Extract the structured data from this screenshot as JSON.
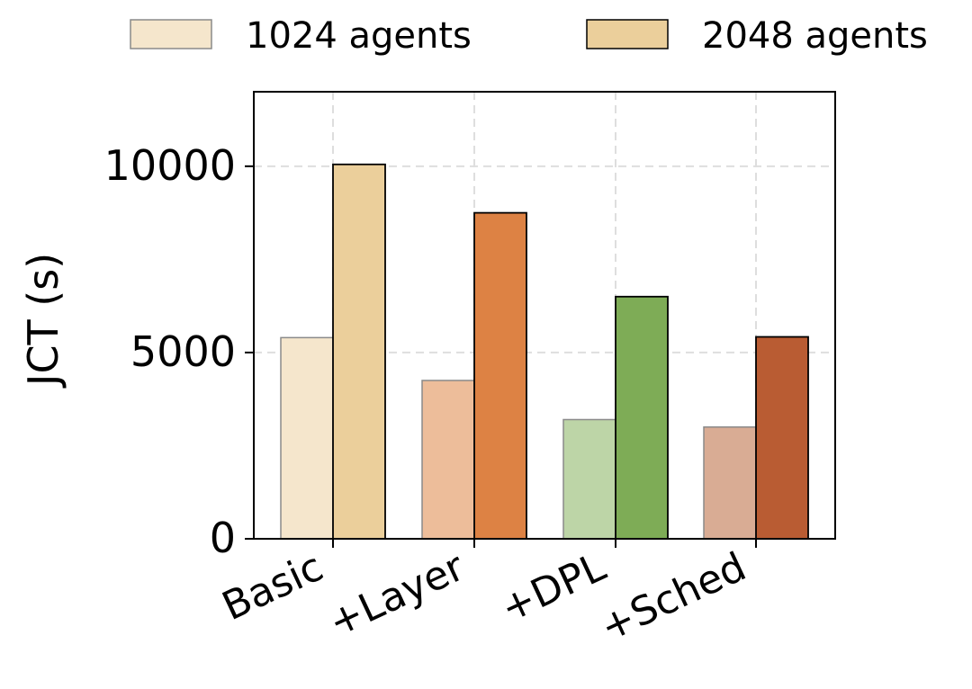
{
  "chart_data": {
    "type": "bar",
    "categories": [
      "Basic",
      "+Layer",
      "+DPL",
      "+Sched"
    ],
    "series": [
      {
        "name": "1024 agents",
        "values": [
          5400,
          4250,
          3200,
          3000
        ],
        "colors": [
          "#f5e6cc",
          "#edbd9a",
          "#bdd5a7",
          "#d9ac94"
        ]
      },
      {
        "name": "2048 agents",
        "values": [
          10050,
          8750,
          6500,
          5420
        ],
        "colors": [
          "#ebcf9b",
          "#dd8244",
          "#7eac56",
          "#b95c33"
        ]
      }
    ],
    "legend": {
      "placement": "top",
      "colors": [
        "#f5e6cc",
        "#ebcf9b"
      ]
    },
    "title": "",
    "xlabel": "",
    "ylabel": "JCT (s)",
    "ylim": [
      0,
      12000
    ],
    "yticks": [
      0,
      5000,
      10000
    ],
    "grid": true,
    "edge_color": "#000000"
  }
}
